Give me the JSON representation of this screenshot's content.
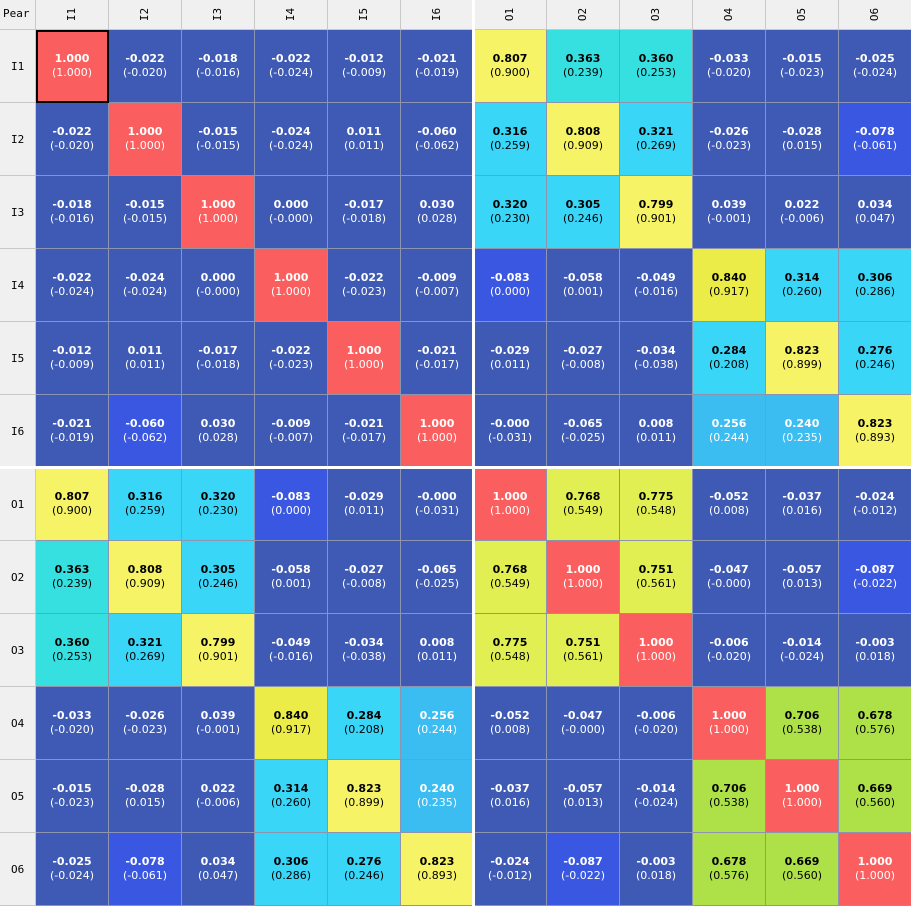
{
  "corner_label": "Pear",
  "colors": {
    "diag": "#fa5e5e",
    "neutral": "#3e5ab4",
    "neg_strong": "#3a57e2",
    "weak": "#2f96e6",
    "light_blue": "#3ad6f8",
    "cyan": "#36e0e0",
    "blue_mid": "#3bbdf2",
    "lime": "#aee048",
    "yellow_green": "#e2ef52",
    "yellow": "#f6f466",
    "gold": "#ecec48",
    "header_bg": "#f0f0f0"
  },
  "chart_data": {
    "type": "heatmap",
    "labels": [
      "I1",
      "I2",
      "I3",
      "I4",
      "I5",
      "I6",
      "O1",
      "O2",
      "O3",
      "O4",
      "O5",
      "O6"
    ],
    "values": [
      [
        "1.000",
        "-0.022",
        "-0.018",
        "-0.022",
        "-0.012",
        "-0.021",
        "0.807",
        "0.363",
        "0.360",
        "-0.033",
        "-0.015",
        "-0.025"
      ],
      [
        "-0.022",
        "1.000",
        "-0.015",
        "-0.024",
        "0.011",
        "-0.060",
        "0.316",
        "0.808",
        "0.321",
        "-0.026",
        "-0.028",
        "-0.078"
      ],
      [
        "-0.018",
        "-0.015",
        "1.000",
        "0.000",
        "-0.017",
        "0.030",
        "0.320",
        "0.305",
        "0.799",
        "0.039",
        "0.022",
        "0.034"
      ],
      [
        "-0.022",
        "-0.024",
        "0.000",
        "1.000",
        "-0.022",
        "-0.009",
        "-0.083",
        "-0.058",
        "-0.049",
        "0.840",
        "0.314",
        "0.306"
      ],
      [
        "-0.012",
        "0.011",
        "-0.017",
        "-0.022",
        "1.000",
        "-0.021",
        "-0.029",
        "-0.027",
        "-0.034",
        "0.284",
        "0.823",
        "0.276"
      ],
      [
        "-0.021",
        "-0.060",
        "0.030",
        "-0.009",
        "-0.021",
        "1.000",
        "-0.000",
        "-0.065",
        "0.008",
        "0.256",
        "0.240",
        "0.823"
      ],
      [
        "0.807",
        "0.316",
        "0.320",
        "-0.083",
        "-0.029",
        "-0.000",
        "1.000",
        "0.768",
        "0.775",
        "-0.052",
        "-0.037",
        "-0.024"
      ],
      [
        "0.363",
        "0.808",
        "0.305",
        "-0.058",
        "-0.027",
        "-0.065",
        "0.768",
        "1.000",
        "0.751",
        "-0.047",
        "-0.057",
        "-0.087"
      ],
      [
        "0.360",
        "0.321",
        "0.799",
        "-0.049",
        "-0.034",
        "0.008",
        "0.775",
        "0.751",
        "1.000",
        "-0.006",
        "-0.014",
        "-0.003"
      ],
      [
        "-0.033",
        "-0.026",
        "0.039",
        "0.840",
        "0.284",
        "0.256",
        "-0.052",
        "-0.047",
        "-0.006",
        "1.000",
        "0.706",
        "0.678"
      ],
      [
        "-0.015",
        "-0.028",
        "0.022",
        "0.314",
        "0.823",
        "0.240",
        "-0.037",
        "-0.057",
        "-0.014",
        "0.706",
        "1.000",
        "0.669"
      ],
      [
        "-0.025",
        "-0.078",
        "0.034",
        "0.306",
        "0.276",
        "0.823",
        "-0.024",
        "-0.087",
        "-0.003",
        "0.678",
        "0.669",
        "1.000"
      ]
    ],
    "secondary_values": [
      [
        "1.000",
        "-0.020",
        "-0.016",
        "-0.024",
        "-0.009",
        "-0.019",
        "0.900",
        "0.239",
        "0.253",
        "-0.020",
        "-0.023",
        "-0.024"
      ],
      [
        "-0.020",
        "1.000",
        "-0.015",
        "-0.024",
        "0.011",
        "-0.062",
        "0.259",
        "0.909",
        "0.269",
        "-0.023",
        "0.015",
        "-0.061"
      ],
      [
        "-0.016",
        "-0.015",
        "1.000",
        "-0.000",
        "-0.018",
        "0.028",
        "0.230",
        "0.246",
        "0.901",
        "-0.001",
        "-0.006",
        "0.047"
      ],
      [
        "-0.024",
        "-0.024",
        "-0.000",
        "1.000",
        "-0.023",
        "-0.007",
        "0.000",
        "0.001",
        "-0.016",
        "0.917",
        "0.260",
        "0.286"
      ],
      [
        "-0.009",
        "0.011",
        "-0.018",
        "-0.023",
        "1.000",
        "-0.017",
        "0.011",
        "-0.008",
        "-0.038",
        "0.208",
        "0.899",
        "0.246"
      ],
      [
        "-0.019",
        "-0.062",
        "0.028",
        "-0.007",
        "-0.017",
        "1.000",
        "-0.031",
        "-0.025",
        "0.011",
        "0.244",
        "0.235",
        "0.893"
      ],
      [
        "0.900",
        "0.259",
        "0.230",
        "0.000",
        "0.011",
        "-0.031",
        "1.000",
        "0.549",
        "0.548",
        "0.008",
        "0.016",
        "-0.012"
      ],
      [
        "0.239",
        "0.909",
        "0.246",
        "0.001",
        "-0.008",
        "-0.025",
        "0.549",
        "1.000",
        "0.561",
        "-0.000",
        "0.013",
        "-0.022"
      ],
      [
        "0.253",
        "0.269",
        "0.901",
        "-0.016",
        "-0.038",
        "0.011",
        "0.548",
        "0.561",
        "1.000",
        "-0.020",
        "-0.024",
        "0.018"
      ],
      [
        "-0.020",
        "-0.023",
        "-0.001",
        "0.917",
        "0.208",
        "0.244",
        "0.008",
        "-0.000",
        "-0.020",
        "1.000",
        "0.538",
        "0.576"
      ],
      [
        "-0.023",
        "0.015",
        "-0.006",
        "0.260",
        "0.899",
        "0.235",
        "0.016",
        "0.013",
        "-0.024",
        "0.538",
        "1.000",
        "0.560"
      ],
      [
        "-0.024",
        "-0.061",
        "0.047",
        "0.286",
        "0.246",
        "0.893",
        "-0.012",
        "-0.022",
        "0.018",
        "0.576",
        "0.560",
        "1.000"
      ]
    ],
    "cell_colors": [
      [
        "diag",
        "neutral",
        "neutral",
        "neutral",
        "neutral",
        "neutral",
        "yellow",
        "cyan",
        "cyan",
        "neutral",
        "neutral",
        "neutral"
      ],
      [
        "neutral",
        "diag",
        "neutral",
        "neutral",
        "neutral",
        "neutral",
        "light_blue",
        "yellow",
        "light_blue",
        "neutral",
        "neutral",
        "neg_strong"
      ],
      [
        "neutral",
        "neutral",
        "diag",
        "neutral",
        "neutral",
        "neutral",
        "light_blue",
        "light_blue",
        "yellow",
        "neutral",
        "neutral",
        "neutral"
      ],
      [
        "neutral",
        "neutral",
        "neutral",
        "diag",
        "neutral",
        "neutral",
        "neg_strong",
        "neutral",
        "neutral",
        "gold",
        "light_blue",
        "light_blue"
      ],
      [
        "neutral",
        "neutral",
        "neutral",
        "neutral",
        "diag",
        "neutral",
        "neutral",
        "neutral",
        "neutral",
        "light_blue",
        "yellow",
        "light_blue"
      ],
      [
        "neutral",
        "neg_strong",
        "neutral",
        "neutral",
        "neutral",
        "diag",
        "neutral",
        "neutral",
        "neutral",
        "blue_mid",
        "blue_mid",
        "yellow"
      ],
      [
        "yellow",
        "light_blue",
        "light_blue",
        "neg_strong",
        "neutral",
        "neutral",
        "diag",
        "yellow_green",
        "yellow_green",
        "neutral",
        "neutral",
        "neutral"
      ],
      [
        "cyan",
        "yellow",
        "light_blue",
        "neutral",
        "neutral",
        "neutral",
        "yellow_green",
        "diag",
        "yellow_green",
        "neutral",
        "neutral",
        "neg_strong"
      ],
      [
        "cyan",
        "light_blue",
        "yellow",
        "neutral",
        "neutral",
        "neutral",
        "yellow_green",
        "yellow_green",
        "diag",
        "neutral",
        "neutral",
        "neutral"
      ],
      [
        "neutral",
        "neutral",
        "neutral",
        "gold",
        "light_blue",
        "blue_mid",
        "neutral",
        "neutral",
        "neutral",
        "diag",
        "lime",
        "lime"
      ],
      [
        "neutral",
        "neutral",
        "neutral",
        "light_blue",
        "yellow",
        "blue_mid",
        "neutral",
        "neutral",
        "neutral",
        "lime",
        "diag",
        "lime"
      ],
      [
        "neutral",
        "neg_strong",
        "neutral",
        "light_blue",
        "light_blue",
        "yellow",
        "neutral",
        "neg_strong",
        "neutral",
        "lime",
        "lime",
        "diag"
      ]
    ],
    "selected_cell": [
      0,
      0
    ]
  }
}
